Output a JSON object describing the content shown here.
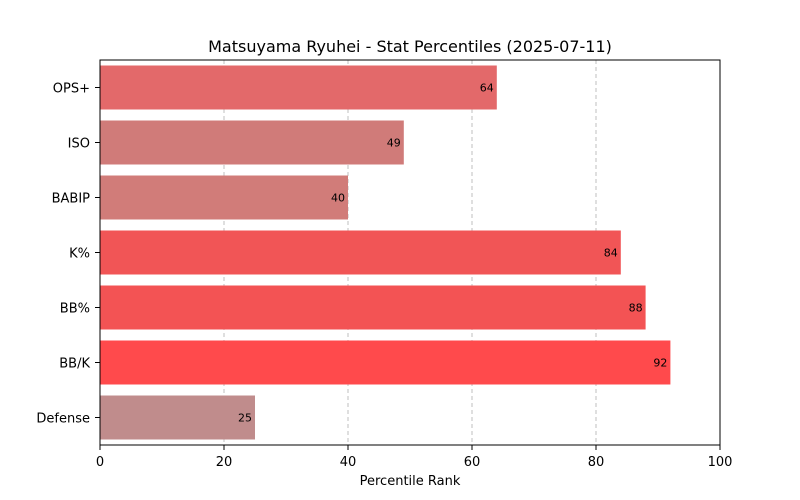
{
  "chart_data": {
    "type": "bar",
    "orientation": "horizontal",
    "title": "Matsuyama Ryuhei - Stat Percentiles (2025-07-11)",
    "xlabel": "Percentile Rank",
    "ylabel": "",
    "xlim": [
      0,
      100
    ],
    "xticks": [
      "0",
      "20",
      "40",
      "60",
      "80",
      "100"
    ],
    "grid": "x-dashed",
    "categories": [
      "OPS+",
      "ISO",
      "BABIP",
      "K%",
      "BB%",
      "BB/K",
      "Defense"
    ],
    "values": [
      64,
      49,
      40,
      84,
      88,
      92,
      25
    ],
    "colors": [
      "#e3696a",
      "#d07b79",
      "#d17c79",
      "#f15556",
      "#f35354",
      "#ff4a4c",
      "#c08c8c"
    ]
  }
}
